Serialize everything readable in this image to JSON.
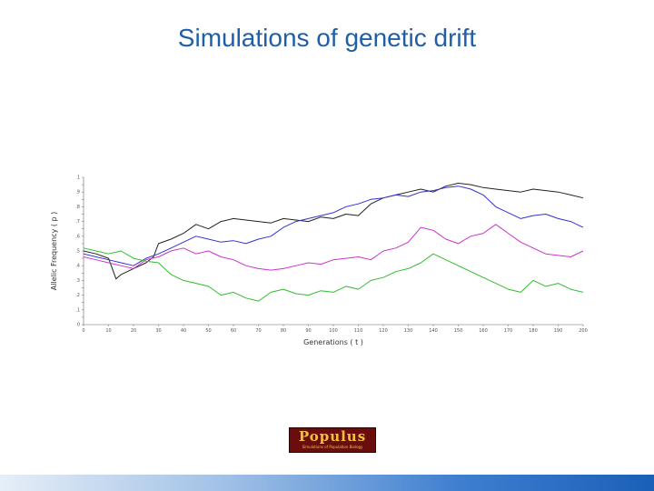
{
  "slide": {
    "title": "Simulations of genetic drift"
  },
  "logo": {
    "name": "Populus",
    "tagline": "Simulations of Population Biology"
  },
  "chart_data": {
    "type": "line",
    "xlabel": "Generations ( t )",
    "ylabel": "Allelic Frequency ( p )",
    "xlim": [
      0,
      200
    ],
    "ylim": [
      0,
      1
    ],
    "x_ticks": [
      0,
      10,
      20,
      30,
      40,
      50,
      60,
      70,
      80,
      90,
      100,
      110,
      120,
      130,
      140,
      150,
      160,
      170,
      180,
      190,
      200
    ],
    "y_ticks": [
      "0",
      ".05",
      ".1",
      ".15",
      ".2",
      ".25",
      ".3",
      ".35",
      ".4",
      ".45",
      ".5",
      ".55",
      ".6",
      ".65",
      ".7",
      ".75",
      ".8",
      ".85",
      ".9",
      ".95",
      "1"
    ],
    "grid": false,
    "series": [
      {
        "color": "#222222",
        "x": [
          0,
          5,
          10,
          13,
          15,
          20,
          25,
          28,
          30,
          35,
          40,
          45,
          50,
          55,
          60,
          65,
          70,
          75,
          80,
          85,
          90,
          95,
          100,
          105,
          110,
          115,
          120,
          125,
          130,
          135,
          140,
          145,
          150,
          155,
          160,
          165,
          170,
          175,
          180,
          185,
          190,
          195,
          200
        ],
        "y": [
          0.5,
          0.48,
          0.45,
          0.31,
          0.34,
          0.38,
          0.42,
          0.46,
          0.55,
          0.58,
          0.62,
          0.68,
          0.65,
          0.7,
          0.72,
          0.71,
          0.7,
          0.69,
          0.72,
          0.71,
          0.7,
          0.73,
          0.72,
          0.75,
          0.74,
          0.82,
          0.86,
          0.88,
          0.9,
          0.92,
          0.9,
          0.94,
          0.96,
          0.95,
          0.93,
          0.92,
          0.91,
          0.9,
          0.92,
          0.91,
          0.9,
          0.88,
          0.86
        ]
      },
      {
        "color": "#3333cc",
        "x": [
          0,
          5,
          10,
          15,
          20,
          25,
          30,
          35,
          40,
          45,
          50,
          55,
          60,
          65,
          70,
          75,
          80,
          85,
          90,
          95,
          100,
          105,
          110,
          115,
          120,
          125,
          130,
          135,
          140,
          145,
          150,
          155,
          160,
          165,
          170,
          175,
          180,
          185,
          190,
          195,
          200
        ],
        "y": [
          0.48,
          0.46,
          0.44,
          0.42,
          0.4,
          0.45,
          0.48,
          0.52,
          0.56,
          0.6,
          0.58,
          0.56,
          0.57,
          0.55,
          0.58,
          0.6,
          0.66,
          0.7,
          0.72,
          0.74,
          0.76,
          0.8,
          0.82,
          0.85,
          0.86,
          0.88,
          0.87,
          0.9,
          0.91,
          0.93,
          0.94,
          0.92,
          0.88,
          0.8,
          0.76,
          0.72,
          0.74,
          0.75,
          0.72,
          0.7,
          0.66
        ]
      },
      {
        "color": "#cc33cc",
        "x": [
          0,
          5,
          10,
          15,
          20,
          25,
          30,
          35,
          40,
          45,
          50,
          55,
          60,
          65,
          70,
          75,
          80,
          85,
          90,
          95,
          100,
          105,
          110,
          115,
          120,
          125,
          130,
          135,
          140,
          145,
          150,
          155,
          160,
          165,
          170,
          175,
          180,
          185,
          190,
          195,
          200
        ],
        "y": [
          0.46,
          0.44,
          0.42,
          0.4,
          0.38,
          0.44,
          0.46,
          0.5,
          0.52,
          0.48,
          0.5,
          0.46,
          0.44,
          0.4,
          0.38,
          0.37,
          0.38,
          0.4,
          0.42,
          0.41,
          0.44,
          0.45,
          0.46,
          0.44,
          0.5,
          0.52,
          0.56,
          0.66,
          0.64,
          0.58,
          0.55,
          0.6,
          0.62,
          0.68,
          0.62,
          0.56,
          0.52,
          0.48,
          0.47,
          0.46,
          0.5
        ]
      },
      {
        "color": "#33bb33",
        "x": [
          0,
          5,
          10,
          15,
          20,
          25,
          30,
          35,
          40,
          45,
          50,
          55,
          60,
          65,
          70,
          75,
          80,
          85,
          90,
          95,
          100,
          105,
          110,
          115,
          120,
          125,
          130,
          135,
          140,
          145,
          150,
          155,
          160,
          165,
          170,
          175,
          180,
          185,
          190,
          195,
          200
        ],
        "y": [
          0.52,
          0.5,
          0.48,
          0.5,
          0.45,
          0.43,
          0.42,
          0.34,
          0.3,
          0.28,
          0.26,
          0.2,
          0.22,
          0.18,
          0.16,
          0.22,
          0.24,
          0.21,
          0.2,
          0.23,
          0.22,
          0.26,
          0.24,
          0.3,
          0.32,
          0.36,
          0.38,
          0.42,
          0.48,
          0.44,
          0.4,
          0.36,
          0.32,
          0.28,
          0.24,
          0.22,
          0.3,
          0.26,
          0.28,
          0.24,
          0.22
        ]
      }
    ]
  }
}
